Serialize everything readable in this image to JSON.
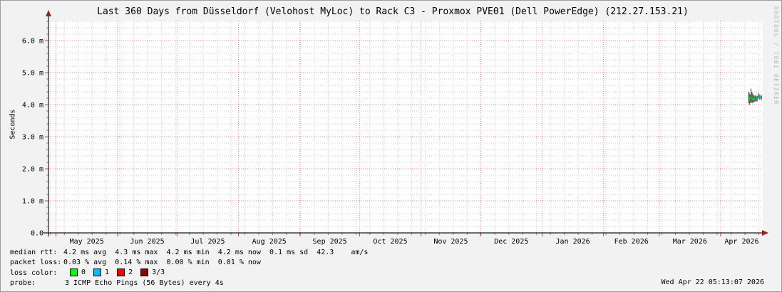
{
  "chart": {
    "title": "Last 360 Days from Düsseldorf (Velohost MyLoc) to Rack C3 - Proxmox PVE01 (Dell PowerEdge) (212.27.153.21)",
    "y_axis_label": "Seconds",
    "watermark": "RRDTOOL / TOBI OETIKER"
  },
  "chart_data": {
    "type": "line",
    "title": "Last 360 Days from Düsseldorf (Velohost MyLoc) to Rack C3 - Proxmox PVE01 (Dell PowerEdge) (212.27.153.21)",
    "xlabel": "",
    "ylabel": "Seconds",
    "ylim_ms": [
      0,
      6.6
    ],
    "y_tick_step_ms": 1.0,
    "y_minor_step_ms": 0.2,
    "y_tick_labels": [
      "0.0",
      "1.0 m",
      "2.0 m",
      "3.0 m",
      "4.0 m",
      "5.0 m",
      "6.0 m"
    ],
    "x_tick_labels": [
      "May 2025",
      "Jun 2025",
      "Jul 2025",
      "Aug 2025",
      "Sep 2025",
      "Oct 2025",
      "Nov 2025",
      "Dec 2025",
      "Jan 2026",
      "Feb 2026",
      "Mar 2026",
      "Apr 2026"
    ],
    "x_end": "2026-04-22T05:13:07",
    "x_span_days": 360,
    "grid": "on",
    "median_rtt_ms": {
      "avg": 4.2,
      "max": 4.3,
      "min": 4.2,
      "now": 4.2,
      "sd": 0.1,
      "am_s": 42.3
    },
    "packet_loss_pct": {
      "avg": 0.03,
      "max": 0.14,
      "min": 0.0,
      "now": 0.01
    },
    "series": [
      {
        "name": "median rtt with smoke",
        "points": [
          {
            "days_ago": 7.1,
            "median_ms": 4.2,
            "smoke_hi_ms": 4.4,
            "smoke_lo_ms": 4.05,
            "color": "#00c800"
          },
          {
            "days_ago": 6.7,
            "median_ms": 4.15,
            "smoke_hi_ms": 4.35,
            "smoke_lo_ms": 4.0,
            "color": "#00c800"
          },
          {
            "days_ago": 6.3,
            "median_ms": 4.25,
            "smoke_hi_ms": 4.32,
            "smoke_lo_ms": 4.05,
            "color": "#00c800"
          },
          {
            "days_ago": 5.9,
            "median_ms": 4.18,
            "smoke_hi_ms": 4.5,
            "smoke_lo_ms": 4.05,
            "color": "#00c800"
          },
          {
            "days_ago": 5.5,
            "median_ms": 4.22,
            "smoke_hi_ms": 4.4,
            "smoke_lo_ms": 4.08,
            "color": "#00c800"
          },
          {
            "days_ago": 5.1,
            "median_ms": 4.15,
            "smoke_hi_ms": 4.35,
            "smoke_lo_ms": 4.05,
            "color": "#00b8ff"
          },
          {
            "days_ago": 4.7,
            "median_ms": 4.2,
            "smoke_hi_ms": 4.3,
            "smoke_lo_ms": 4.08,
            "color": "#00b8ff"
          },
          {
            "days_ago": 4.3,
            "median_ms": 4.18,
            "smoke_hi_ms": 4.28,
            "smoke_lo_ms": 4.08,
            "color": "#00c800"
          },
          {
            "days_ago": 3.8,
            "median_ms": 4.22,
            "smoke_hi_ms": 4.3,
            "smoke_lo_ms": 4.1,
            "color": "#00c800"
          },
          {
            "days_ago": 3.3,
            "median_ms": 4.18,
            "smoke_hi_ms": 4.26,
            "smoke_lo_ms": 4.1,
            "color": "#00c800"
          },
          {
            "days_ago": 2.8,
            "median_ms": 4.2,
            "smoke_hi_ms": 4.28,
            "smoke_lo_ms": 4.1,
            "color": "#00c800"
          },
          {
            "days_ago": 2.2,
            "median_ms": 4.28,
            "smoke_hi_ms": 4.36,
            "smoke_lo_ms": 4.18,
            "color": "#0090ff"
          },
          {
            "days_ago": 1.5,
            "median_ms": 4.25,
            "smoke_hi_ms": 4.32,
            "smoke_lo_ms": 4.15,
            "color": "#0090ff"
          },
          {
            "days_ago": 0.6,
            "median_ms": 4.22,
            "smoke_hi_ms": 4.3,
            "smoke_lo_ms": 4.15,
            "color": "#0090ff"
          }
        ]
      }
    ]
  },
  "colors": {
    "background": "#f2f2f2",
    "canvas": "#ffffff",
    "grid_major": "#f28080",
    "grid_minor": "#c8c8c8",
    "axis": "#1a1a1a",
    "arrow": "#a02020",
    "smoke": "#484848",
    "tick_major": "#d04040",
    "tick_minor": "#888888"
  },
  "legend": {
    "median_rtt_label": "median rtt:",
    "median_rtt_stats": "4.2 ms avg  4.3 ms max  4.2 ms min  4.2 ms now  0.1 ms sd  42.3    am/s",
    "packet_loss_label": "packet loss:",
    "packet_loss_stats": "0.03 % avg  0.14 % max  0.00 % min  0.01 % now",
    "loss_color_label": "loss color:",
    "loss_items": [
      {
        "label": "0",
        "color": "#00ff00"
      },
      {
        "label": "1",
        "color": "#00b8ff"
      },
      {
        "label": "2",
        "color": "#ff0000"
      },
      {
        "label": "3/3",
        "color": "#900000"
      }
    ],
    "probe_label": "probe:",
    "probe_value": "3 ICMP Echo Pings (56 Bytes) every 4s"
  },
  "footer": {
    "timestamp": "Wed Apr 22 05:13:07 2026"
  }
}
